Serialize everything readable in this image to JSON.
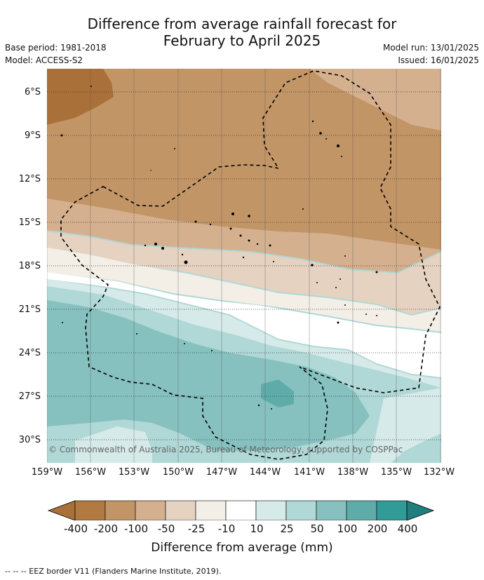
{
  "title_line1": "Difference from average rainfall forecast for",
  "title_line2": "February to April 2025",
  "base_period": "Base period: 1981-2018",
  "model": "Model: ACCESS-S2",
  "model_run": "Model run: 13/01/2025",
  "issued": "Issued: 16/01/2025",
  "copyright": "© Commonwealth of Australia 2025, Bureau of Meteorology, supported by COSPPac",
  "footnote": "--  --  -- EEZ border V11 (Flanders Marine Institute, 2019).",
  "lat_labels": [
    "6°S",
    "9°S",
    "12°S",
    "15°S",
    "18°S",
    "21°S",
    "24°S",
    "27°S",
    "30°S"
  ],
  "lon_labels": [
    "159°W",
    "156°W",
    "153°W",
    "150°W",
    "147°W",
    "144°W",
    "141°W",
    "138°W",
    "135°W",
    "132°W"
  ],
  "colorbar": {
    "title": "Difference from average (mm)",
    "labels": [
      "-400",
      "-200",
      "-100",
      "-50",
      "-25",
      "-10",
      "10",
      "25",
      "50",
      "100",
      "200",
      "400"
    ],
    "colors": [
      "#a9703a",
      "#b07a40",
      "#c29566",
      "#d4b08f",
      "#e5d2c1",
      "#f3eee6",
      "#ffffff",
      "#d5eae9",
      "#afd8d6",
      "#86c1bf",
      "#5eacaa",
      "#329b98",
      "#1e7f7c"
    ]
  }
}
